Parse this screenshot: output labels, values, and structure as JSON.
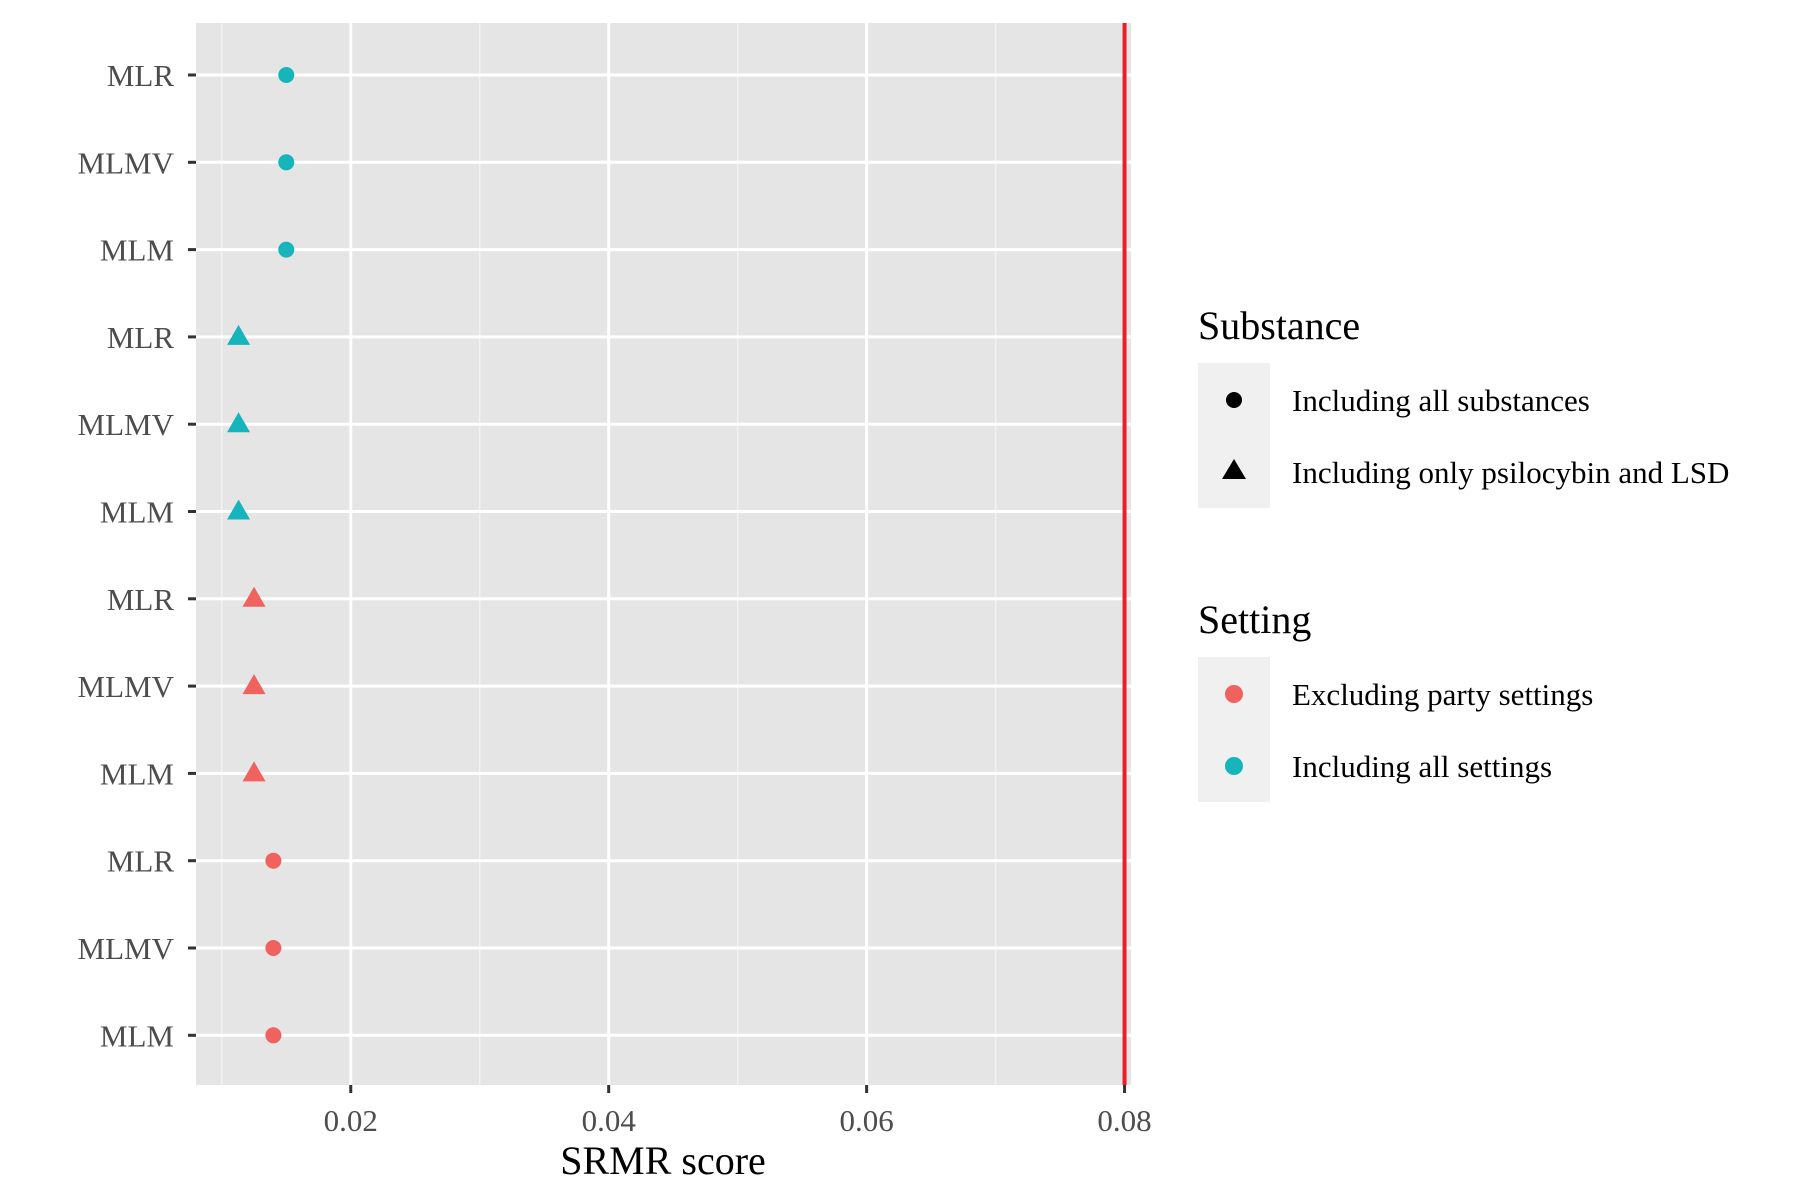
{
  "chart_data": {
    "type": "scatter",
    "xlabel": "SRMR score",
    "ylabel": "",
    "xlim": [
      0.008,
      0.0805
    ],
    "x_ticks": [
      "0.02",
      "0.04",
      "0.06",
      "0.08"
    ],
    "reference_line": {
      "x": 0.08,
      "color": "#ee1c25"
    },
    "grid": true,
    "legend_placement": "right",
    "categories": [
      "MLR",
      "MLMV",
      "MLM",
      "MLR",
      "MLMV",
      "MLM",
      "MLR",
      "MLMV",
      "MLM",
      "MLR",
      "MLMV",
      "MLM"
    ],
    "points": [
      {
        "label": "MLR",
        "x": 0.015,
        "shape": "circle",
        "color": "#16b5bb"
      },
      {
        "label": "MLMV",
        "x": 0.015,
        "shape": "circle",
        "color": "#16b5bb"
      },
      {
        "label": "MLM",
        "x": 0.015,
        "shape": "circle",
        "color": "#16b5bb"
      },
      {
        "label": "MLR",
        "x": 0.0113,
        "shape": "triangle",
        "color": "#16b5bb"
      },
      {
        "label": "MLMV",
        "x": 0.0113,
        "shape": "triangle",
        "color": "#16b5bb"
      },
      {
        "label": "MLM",
        "x": 0.0113,
        "shape": "triangle",
        "color": "#16b5bb"
      },
      {
        "label": "MLR",
        "x": 0.0125,
        "shape": "triangle",
        "color": "#f0625d"
      },
      {
        "label": "MLMV",
        "x": 0.0125,
        "shape": "triangle",
        "color": "#f0625d"
      },
      {
        "label": "MLM",
        "x": 0.0125,
        "shape": "triangle",
        "color": "#f0625d"
      },
      {
        "label": "MLR",
        "x": 0.014,
        "shape": "circle",
        "color": "#f0625d"
      },
      {
        "label": "MLMV",
        "x": 0.014,
        "shape": "circle",
        "color": "#f0625d"
      },
      {
        "label": "MLM",
        "x": 0.014,
        "shape": "circle",
        "color": "#f0625d"
      }
    ],
    "legend": {
      "substance": {
        "title": "Substance",
        "items": [
          {
            "label": "Including all substances",
            "shape": "circle",
            "color": "#000000"
          },
          {
            "label": "Including only psilocybin and LSD",
            "shape": "triangle",
            "color": "#000000"
          }
        ]
      },
      "setting": {
        "title": "Setting",
        "items": [
          {
            "label": "Excluding party settings",
            "shape": "circle",
            "color": "#f0625d"
          },
          {
            "label": "Including all settings",
            "shape": "circle",
            "color": "#16b5bb"
          }
        ]
      }
    }
  }
}
